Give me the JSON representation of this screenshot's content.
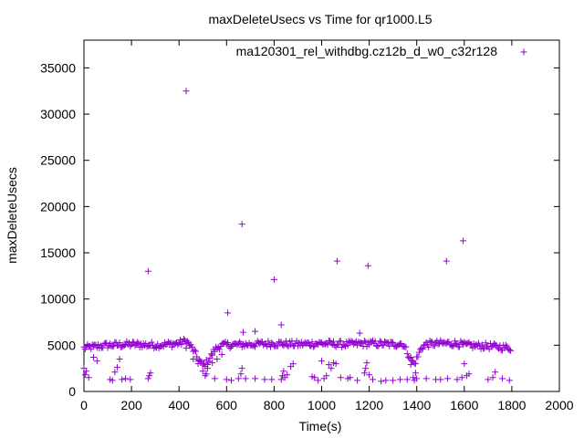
{
  "chart_data": {
    "type": "scatter",
    "title": "maxDeleteUsecs vs Time for qr1000.L5",
    "xlabel": "Time(s)",
    "ylabel": "maxDeleteUsecs",
    "xlim": [
      0,
      2000
    ],
    "ylim": [
      0,
      38000
    ],
    "xticks": [
      0,
      200,
      400,
      600,
      800,
      1000,
      1200,
      1400,
      1600,
      1800,
      2000
    ],
    "yticks": [
      0,
      5000,
      10000,
      15000,
      20000,
      25000,
      30000,
      35000
    ],
    "grid": false,
    "legend_position": "top-right",
    "marker": "+",
    "color": "#9400d3",
    "series": [
      {
        "name": "ma120301_rel_withdbg.cz12b_d_w0_c32r128",
        "points": [
          [
            270,
            13000
          ],
          [
            430,
            32500
          ],
          [
            605,
            8500
          ],
          [
            665,
            18100
          ],
          [
            800,
            12100
          ],
          [
            830,
            7200
          ],
          [
            1065,
            14100
          ],
          [
            1195,
            13600
          ],
          [
            1525,
            14100
          ],
          [
            1595,
            16300
          ],
          [
            670,
            6400
          ],
          [
            720,
            6500
          ],
          [
            1160,
            6300
          ],
          [
            0,
            2500
          ],
          [
            5,
            1800
          ],
          [
            10,
            2200
          ],
          [
            20,
            1500
          ],
          [
            40,
            3700
          ],
          [
            55,
            3300
          ],
          [
            110,
            1300
          ],
          [
            120,
            1200
          ],
          [
            130,
            2100
          ],
          [
            140,
            2600
          ],
          [
            150,
            3500
          ],
          [
            160,
            1300
          ],
          [
            175,
            1400
          ],
          [
            195,
            1300
          ],
          [
            270,
            1400
          ],
          [
            275,
            1700
          ],
          [
            280,
            2000
          ],
          [
            430,
            4700
          ],
          [
            460,
            3500
          ],
          [
            480,
            3000
          ],
          [
            500,
            2200
          ],
          [
            510,
            1700
          ],
          [
            515,
            1900
          ],
          [
            520,
            2500
          ],
          [
            540,
            3100
          ],
          [
            550,
            1400
          ],
          [
            560,
            3500
          ],
          [
            580,
            4000
          ],
          [
            600,
            1300
          ],
          [
            620,
            1200
          ],
          [
            650,
            1400
          ],
          [
            660,
            1900
          ],
          [
            665,
            2500
          ],
          [
            680,
            1400
          ],
          [
            720,
            1400
          ],
          [
            760,
            1300
          ],
          [
            790,
            1300
          ],
          [
            830,
            1300
          ],
          [
            835,
            1700
          ],
          [
            840,
            2200
          ],
          [
            845,
            1500
          ],
          [
            855,
            1800
          ],
          [
            870,
            2700
          ],
          [
            880,
            3000
          ],
          [
            960,
            1600
          ],
          [
            970,
            1500
          ],
          [
            985,
            1200
          ],
          [
            1000,
            3300
          ],
          [
            1010,
            1400
          ],
          [
            1020,
            1700
          ],
          [
            1030,
            2900
          ],
          [
            1040,
            2500
          ],
          [
            1050,
            3100
          ],
          [
            1060,
            3000
          ],
          [
            1080,
            1500
          ],
          [
            1110,
            1400
          ],
          [
            1120,
            1500
          ],
          [
            1150,
            1200
          ],
          [
            1180,
            2000
          ],
          [
            1185,
            2500
          ],
          [
            1190,
            3100
          ],
          [
            1200,
            1800
          ],
          [
            1215,
            1300
          ],
          [
            1250,
            1100
          ],
          [
            1270,
            1200
          ],
          [
            1300,
            1200
          ],
          [
            1330,
            1300
          ],
          [
            1360,
            1300
          ],
          [
            1375,
            2900
          ],
          [
            1380,
            3300
          ],
          [
            1385,
            1500
          ],
          [
            1390,
            1200
          ],
          [
            1395,
            2000
          ],
          [
            1400,
            1400
          ],
          [
            1440,
            1400
          ],
          [
            1480,
            1300
          ],
          [
            1500,
            1300
          ],
          [
            1530,
            1400
          ],
          [
            1570,
            1300
          ],
          [
            1590,
            1500
          ],
          [
            1600,
            3000
          ],
          [
            1610,
            1700
          ],
          [
            1620,
            1900
          ],
          [
            1700,
            1300
          ],
          [
            1720,
            1500
          ],
          [
            1730,
            2100
          ],
          [
            1760,
            1400
          ],
          [
            1790,
            1200
          ]
        ],
        "baseline_segments": [
          [
            [
              0,
              4700
            ],
            [
              100,
              5000
            ],
            [
              200,
              5100
            ],
            [
              300,
              5000
            ],
            [
              400,
              5200
            ],
            [
              430,
              5500
            ]
          ],
          [
            [
              430,
              5500
            ],
            [
              460,
              4500
            ],
            [
              480,
              3500
            ],
            [
              500,
              2800
            ],
            [
              520,
              3200
            ],
            [
              550,
              4500
            ],
            [
              575,
              5000
            ]
          ],
          [
            [
              575,
              5000
            ],
            [
              700,
              5100
            ],
            [
              800,
              5200
            ],
            [
              900,
              5100
            ],
            [
              1000,
              5200
            ],
            [
              1100,
              5100
            ],
            [
              1200,
              5200
            ],
            [
              1300,
              5100
            ],
            [
              1340,
              5200
            ]
          ],
          [
            [
              1340,
              5200
            ],
            [
              1360,
              4300
            ],
            [
              1375,
              3500
            ],
            [
              1390,
              3000
            ],
            [
              1405,
              3800
            ],
            [
              1420,
              4800
            ],
            [
              1440,
              5100
            ]
          ],
          [
            [
              1440,
              5100
            ],
            [
              1500,
              5200
            ],
            [
              1570,
              5200
            ],
            [
              1600,
              5000
            ],
            [
              1700,
              4900
            ],
            [
              1800,
              4700
            ]
          ]
        ]
      }
    ]
  }
}
